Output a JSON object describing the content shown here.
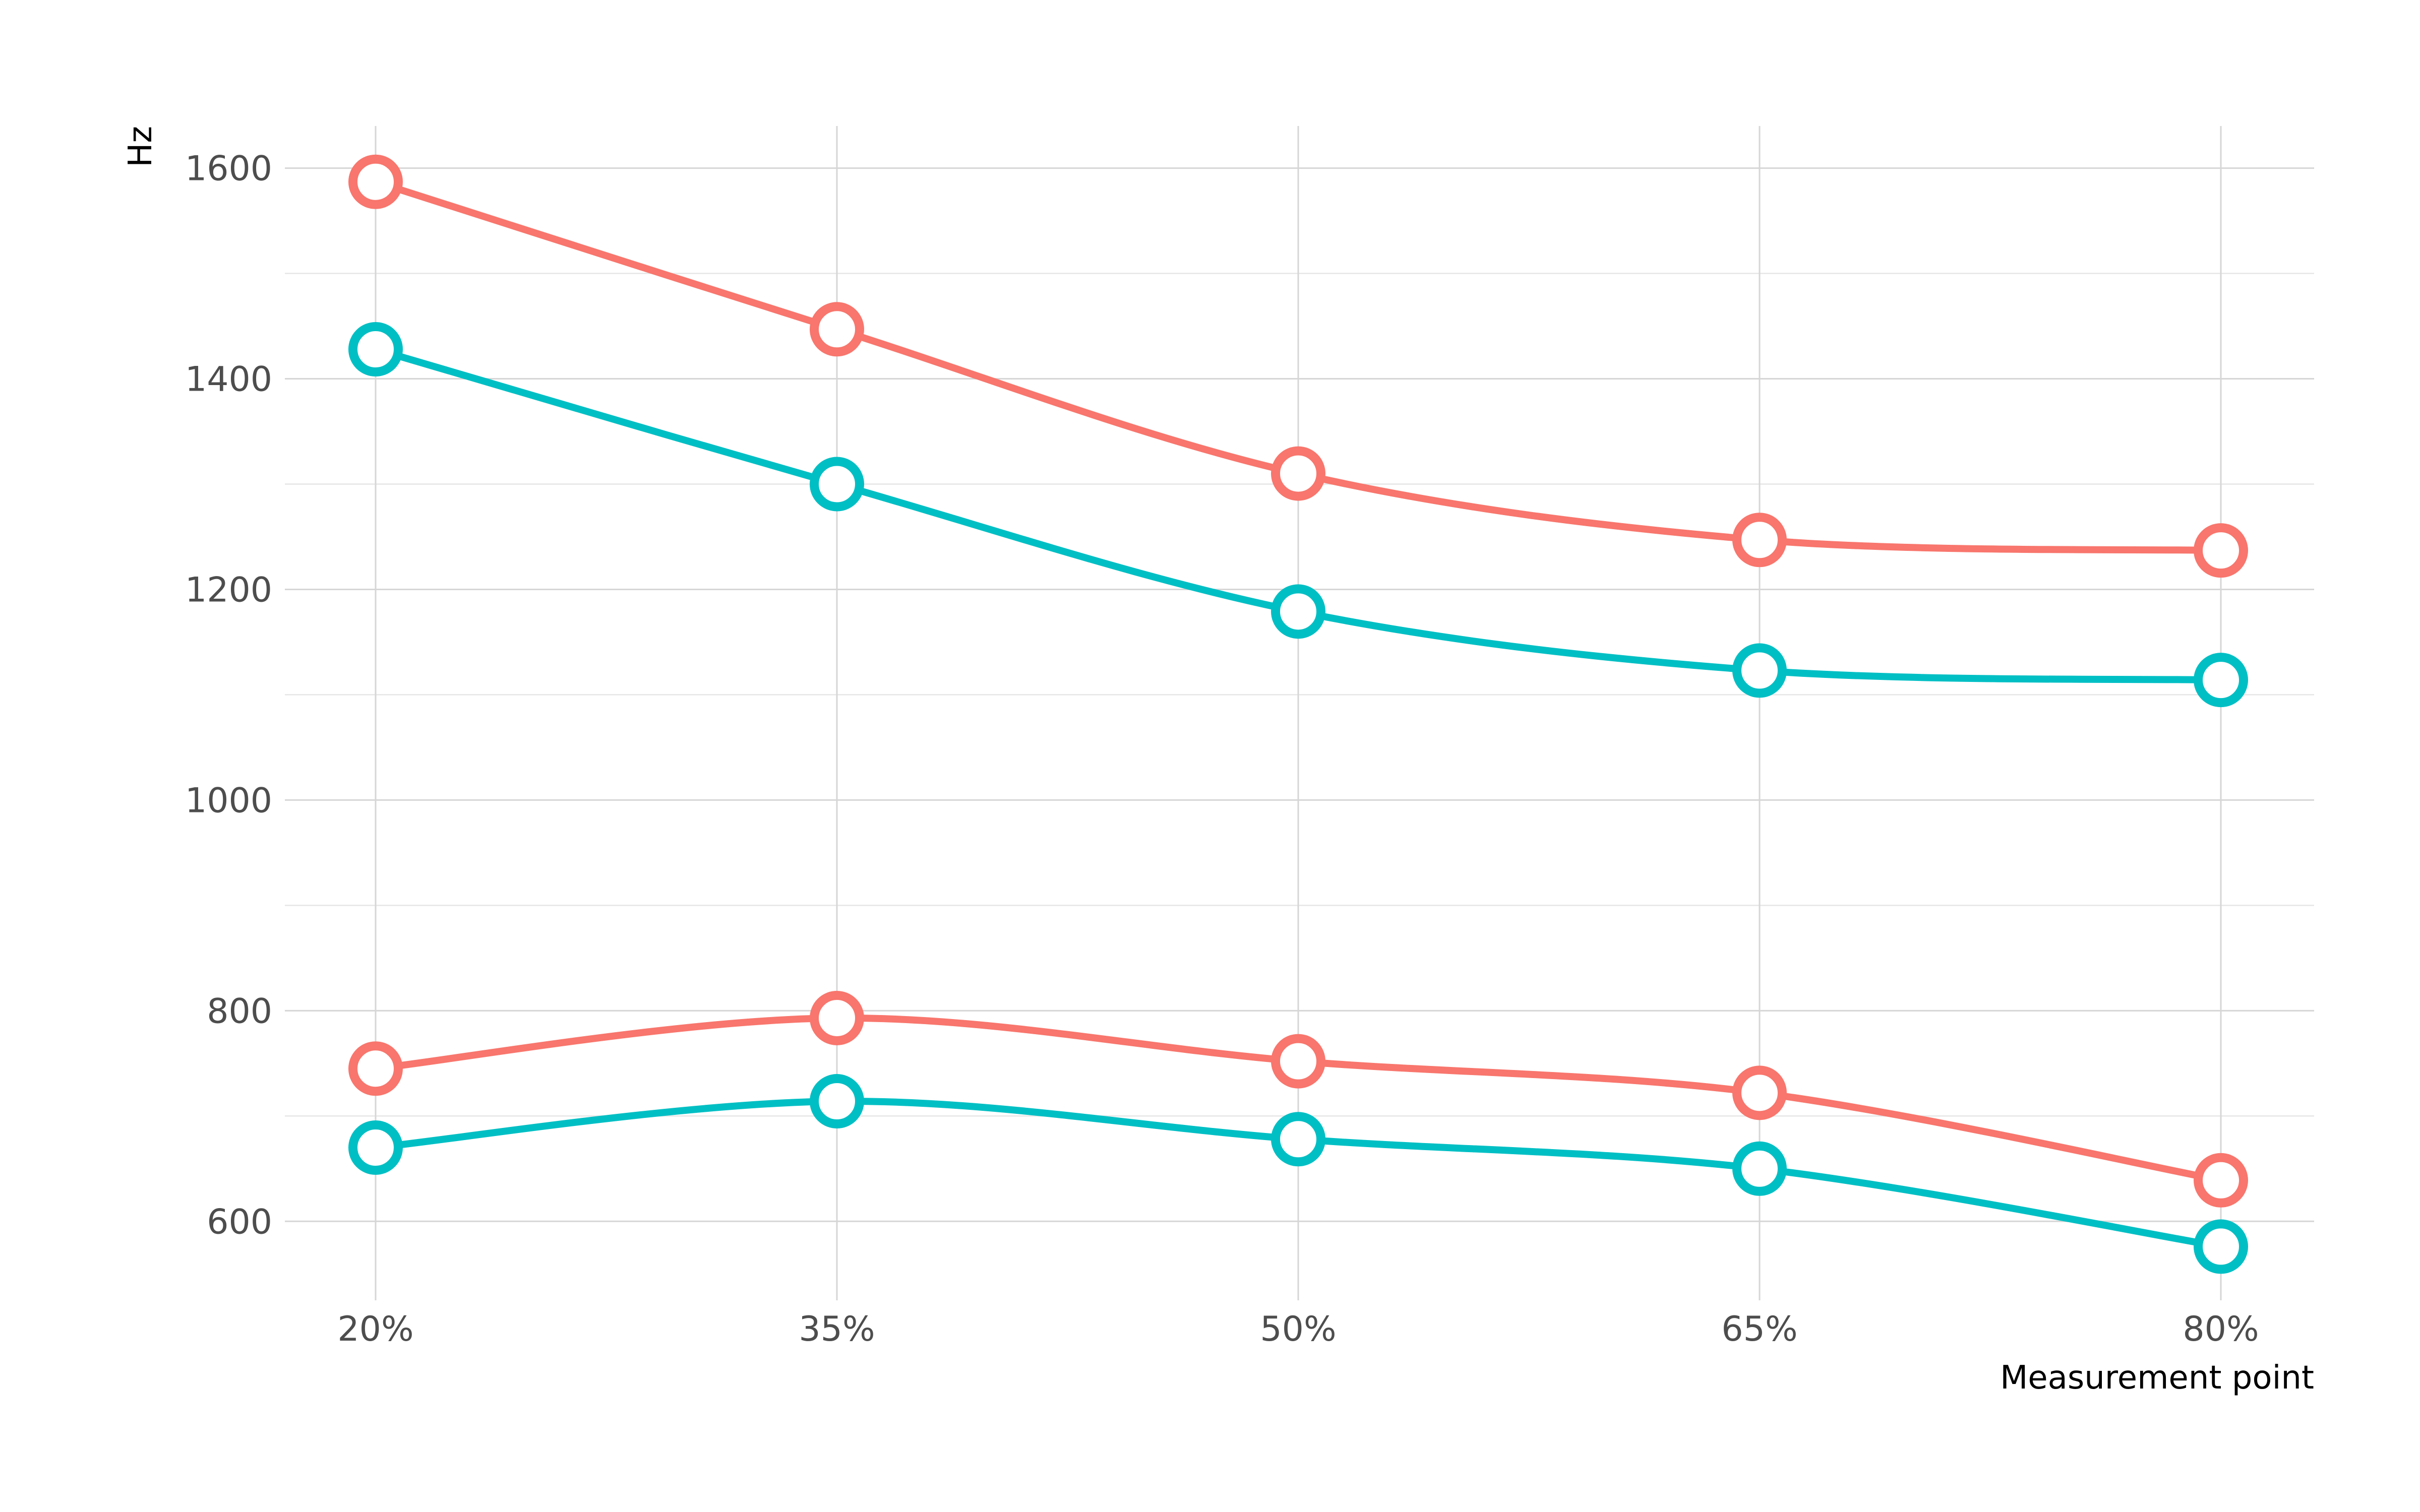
{
  "chart_data": {
    "type": "line",
    "title": "",
    "xlabel": "Measurement point",
    "ylabel": "Hz",
    "categories": [
      "20%",
      "35%",
      "50%",
      "65%",
      "80%"
    ],
    "ylim": [
      525,
      1640
    ],
    "yticks": [
      600,
      800,
      1000,
      1200,
      1400,
      1600
    ],
    "yticks_minor": [
      700,
      900,
      1100,
      1300,
      1500
    ],
    "grid": true,
    "legend": "none",
    "series": [
      {
        "color": "#F8766D",
        "values": [
          1587,
          1447,
          1310,
          1247,
          1237
        ]
      },
      {
        "color": "#00BFC4",
        "values": [
          1428,
          1300,
          1179,
          1123,
          1114
        ]
      },
      {
        "color": "#F8766D",
        "values": [
          745,
          793,
          752,
          722,
          639
        ]
      },
      {
        "color": "#00BFC4",
        "values": [
          670,
          714,
          678,
          650,
          576
        ]
      }
    ]
  }
}
